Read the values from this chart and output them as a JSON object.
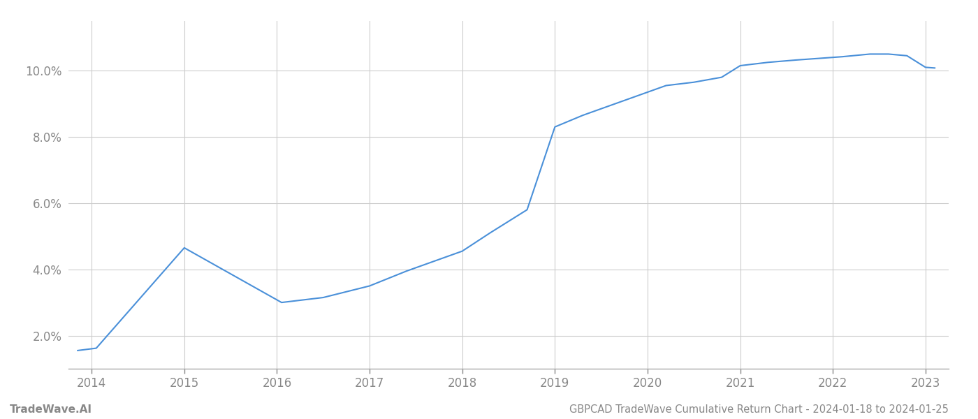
{
  "x_values": [
    2013.85,
    2014.05,
    2015.0,
    2015.7,
    2016.05,
    2016.5,
    2017.0,
    2017.4,
    2017.8,
    2018.0,
    2018.3,
    2018.7,
    2019.0,
    2019.3,
    2019.6,
    2019.9,
    2020.2,
    2020.5,
    2020.8,
    2021.0,
    2021.3,
    2021.6,
    2021.9,
    2022.1,
    2022.4,
    2022.6,
    2022.8,
    2023.0,
    2023.1
  ],
  "y_values": [
    1.55,
    1.62,
    4.65,
    3.55,
    3.0,
    3.15,
    3.5,
    3.95,
    4.35,
    4.55,
    5.1,
    5.8,
    8.3,
    8.65,
    8.95,
    9.25,
    9.55,
    9.65,
    9.8,
    10.15,
    10.25,
    10.32,
    10.38,
    10.42,
    10.5,
    10.5,
    10.45,
    10.1,
    10.08
  ],
  "line_color": "#4a90d9",
  "line_width": 1.5,
  "background_color": "#ffffff",
  "grid_color": "#cccccc",
  "tick_color": "#888888",
  "title_text": "GBPCAD TradeWave Cumulative Return Chart - 2024-01-18 to 2024-01-25",
  "watermark_text": "TradeWave.AI",
  "x_ticks": [
    2014,
    2015,
    2016,
    2017,
    2018,
    2019,
    2020,
    2021,
    2022,
    2023
  ],
  "y_ticks": [
    2.0,
    4.0,
    6.0,
    8.0,
    10.0
  ],
  "ylim": [
    1.0,
    11.5
  ],
  "xlim": [
    2013.75,
    2023.25
  ],
  "title_fontsize": 10.5,
  "watermark_fontsize": 11,
  "tick_fontsize": 12
}
